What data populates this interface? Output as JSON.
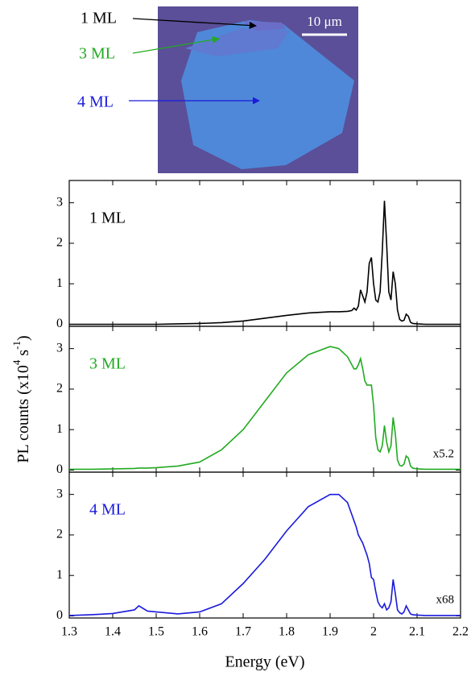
{
  "micrograph": {
    "labels": [
      {
        "text": "1 ML",
        "color": "#000000"
      },
      {
        "text": "3 ML",
        "color": "#22aa22"
      },
      {
        "text": "4 ML",
        "color": "#1a1adc"
      }
    ],
    "scale_bar": "10 μm"
  },
  "chart_data": [
    {
      "type": "line",
      "annotation": null,
      "x": [
        1.3,
        1.35,
        1.4,
        1.45,
        1.46,
        1.48,
        1.5,
        1.55,
        1.6,
        1.65,
        1.7,
        1.75,
        1.8,
        1.85,
        1.9,
        1.92,
        1.94,
        1.95,
        1.955,
        1.96,
        1.965,
        1.97,
        1.975,
        1.98,
        1.985,
        1.99,
        1.995,
        2.0,
        2.005,
        2.01,
        2.015,
        2.02,
        2.025,
        2.03,
        2.035,
        2.04,
        2.045,
        2.05,
        2.055,
        2.06,
        2.065,
        2.07,
        2.075,
        2.08,
        2.085,
        2.09,
        2.1,
        2.12,
        2.15,
        2.2
      ],
      "series": [
        {
          "name": "1 ML",
          "color": "#000000",
          "values": [
            0,
            0,
            0,
            0,
            0,
            0,
            0,
            0.01,
            0.02,
            0.04,
            0.08,
            0.15,
            0.22,
            0.28,
            0.31,
            0.31,
            0.32,
            0.34,
            0.4,
            0.35,
            0.45,
            0.85,
            0.7,
            0.55,
            0.8,
            1.5,
            1.65,
            1.0,
            0.6,
            0.55,
            0.8,
            1.8,
            3.05,
            2.0,
            0.8,
            0.6,
            1.3,
            1.0,
            0.35,
            0.12,
            0.08,
            0.1,
            0.25,
            0.2,
            0.05,
            0.02,
            0.01,
            0,
            0,
            0
          ]
        }
      ],
      "xlim": [
        1.3,
        2.2
      ],
      "xticks": [
        1.3,
        1.4,
        1.5,
        1.6,
        1.7,
        1.8,
        1.9,
        2.0,
        2.1,
        2.2
      ],
      "ylim": [
        -0.05,
        3.55
      ],
      "yticks": [
        0,
        1,
        2,
        3
      ]
    },
    {
      "type": "line",
      "annotation": "x5.2",
      "ylabel": [
        "PL counts (x10",
        "4",
        " s",
        "-1",
        ")"
      ],
      "x": [
        1.3,
        1.35,
        1.4,
        1.45,
        1.46,
        1.48,
        1.5,
        1.55,
        1.6,
        1.65,
        1.7,
        1.75,
        1.8,
        1.85,
        1.9,
        1.92,
        1.94,
        1.95,
        1.955,
        1.96,
        1.965,
        1.97,
        1.975,
        1.98,
        1.985,
        1.99,
        1.995,
        2.0,
        2.005,
        2.01,
        2.015,
        2.02,
        2.025,
        2.03,
        2.035,
        2.04,
        2.045,
        2.05,
        2.055,
        2.06,
        2.065,
        2.07,
        2.075,
        2.08,
        2.085,
        2.09,
        2.1,
        2.12,
        2.15,
        2.2
      ],
      "series": [
        {
          "name": "3 ML",
          "color": "#22aa22",
          "values": [
            0.02,
            0.02,
            0.03,
            0.04,
            0.05,
            0.05,
            0.06,
            0.1,
            0.2,
            0.5,
            1.0,
            1.7,
            2.4,
            2.85,
            3.05,
            3.0,
            2.8,
            2.6,
            2.5,
            2.5,
            2.6,
            2.75,
            2.5,
            2.2,
            2.1,
            2.1,
            2.1,
            1.6,
            0.8,
            0.5,
            0.45,
            0.6,
            1.1,
            0.7,
            0.45,
            0.6,
            1.3,
            0.9,
            0.25,
            0.12,
            0.1,
            0.15,
            0.35,
            0.3,
            0.1,
            0.05,
            0.03,
            0.02,
            0.02,
            0.02
          ]
        }
      ],
      "xlim": [
        1.3,
        2.2
      ],
      "xticks": [
        1.3,
        1.4,
        1.5,
        1.6,
        1.7,
        1.8,
        1.9,
        2.0,
        2.1,
        2.2
      ],
      "ylim": [
        -0.05,
        3.55
      ],
      "yticks": [
        0,
        1,
        2,
        3
      ]
    },
    {
      "type": "line",
      "annotation": "x68",
      "xlabel": "Energy (eV)",
      "x": [
        1.3,
        1.35,
        1.4,
        1.45,
        1.46,
        1.48,
        1.5,
        1.55,
        1.6,
        1.65,
        1.7,
        1.75,
        1.8,
        1.85,
        1.9,
        1.92,
        1.94,
        1.95,
        1.955,
        1.96,
        1.965,
        1.97,
        1.975,
        1.98,
        1.985,
        1.99,
        1.995,
        2.0,
        2.005,
        2.01,
        2.015,
        2.02,
        2.025,
        2.03,
        2.035,
        2.04,
        2.045,
        2.05,
        2.055,
        2.06,
        2.065,
        2.07,
        2.075,
        2.08,
        2.085,
        2.09,
        2.1,
        2.12,
        2.15,
        2.2
      ],
      "series": [
        {
          "name": "4 ML",
          "color": "#1a1adc",
          "values": [
            0.01,
            0.03,
            0.06,
            0.15,
            0.25,
            0.12,
            0.1,
            0.05,
            0.1,
            0.3,
            0.8,
            1.4,
            2.1,
            2.7,
            3.0,
            3.0,
            2.8,
            2.5,
            2.35,
            2.2,
            2.0,
            1.9,
            1.8,
            1.65,
            1.5,
            1.3,
            0.95,
            0.9,
            0.6,
            0.35,
            0.25,
            0.2,
            0.3,
            0.15,
            0.2,
            0.35,
            0.9,
            0.55,
            0.15,
            0.08,
            0.05,
            0.1,
            0.25,
            0.15,
            0.05,
            0.03,
            0.02,
            0.01,
            0.01,
            0.01
          ]
        }
      ],
      "xlim": [
        1.3,
        2.2
      ],
      "xticks": [
        1.3,
        1.4,
        1.5,
        1.6,
        1.7,
        1.8,
        1.9,
        2.0,
        2.1,
        2.2
      ],
      "ylim": [
        -0.05,
        3.55
      ],
      "yticks": [
        0,
        1,
        2,
        3
      ]
    }
  ]
}
